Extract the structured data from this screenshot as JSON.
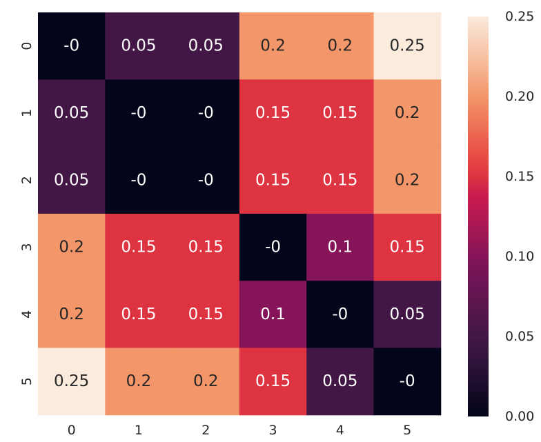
{
  "chart_data": {
    "type": "heatmap",
    "title": "",
    "xlabel": "",
    "ylabel": "",
    "x_categories": [
      "0",
      "1",
      "2",
      "3",
      "4",
      "5"
    ],
    "y_categories": [
      "0",
      "1",
      "2",
      "3",
      "4",
      "5"
    ],
    "values": [
      [
        0,
        0.05,
        0.05,
        0.2,
        0.2,
        0.25
      ],
      [
        0.05,
        0,
        0,
        0.15,
        0.15,
        0.2
      ],
      [
        0.05,
        0,
        0,
        0.15,
        0.15,
        0.2
      ],
      [
        0.2,
        0.15,
        0.15,
        0,
        0.1,
        0.15
      ],
      [
        0.2,
        0.15,
        0.15,
        0.1,
        0,
        0.05
      ],
      [
        0.25,
        0.2,
        0.2,
        0.15,
        0.05,
        0
      ]
    ],
    "annotations": [
      [
        "-0",
        "0.05",
        "0.05",
        "0.2",
        "0.2",
        "0.25"
      ],
      [
        "0.05",
        "-0",
        "-0",
        "0.15",
        "0.15",
        "0.2"
      ],
      [
        "0.05",
        "-0",
        "-0",
        "0.15",
        "0.15",
        "0.2"
      ],
      [
        "0.2",
        "0.15",
        "0.15",
        "-0",
        "0.1",
        "0.15"
      ],
      [
        "0.2",
        "0.15",
        "0.15",
        "0.1",
        "-0",
        "0.05"
      ],
      [
        "0.25",
        "0.2",
        "0.2",
        "0.15",
        "0.05",
        "-0"
      ]
    ],
    "colorbar": {
      "range": [
        0,
        0.25
      ],
      "ticks": [
        0,
        0.05,
        0.1,
        0.15,
        0.2,
        0.25
      ],
      "tick_labels": [
        "0.00",
        "0.05",
        "0.10",
        "0.15",
        "0.20",
        "0.25"
      ]
    },
    "colormap": "rocket",
    "colors": {
      "low": "#03051a",
      "mid_low": "#4c1d4b",
      "mid": "#a11a5b",
      "mid_high": "#e83f3f",
      "high": "#f6b48f",
      "max": "#faebdd"
    }
  }
}
